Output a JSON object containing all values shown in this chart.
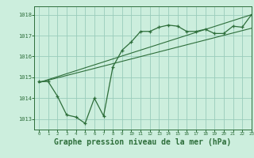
{
  "background_color": "#cceedd",
  "grid_color": "#99ccbb",
  "line_color": "#2d6e3a",
  "xlabel": "Graphe pression niveau de la mer (hPa)",
  "xlabel_fontsize": 7.0,
  "xlim": [
    -0.5,
    23
  ],
  "ylim": [
    1012.5,
    1018.4
  ],
  "yticks": [
    1013,
    1014,
    1015,
    1016,
    1017,
    1018
  ],
  "xticks": [
    0,
    1,
    2,
    3,
    4,
    5,
    6,
    7,
    8,
    9,
    10,
    11,
    12,
    13,
    14,
    15,
    16,
    17,
    18,
    19,
    20,
    21,
    22,
    23
  ],
  "line1_x": [
    0,
    1,
    2,
    3,
    4,
    5,
    6,
    7,
    8,
    9,
    10,
    11,
    12,
    13,
    14,
    15,
    16,
    17,
    18,
    19,
    20,
    21,
    22,
    23
  ],
  "line1_y": [
    1014.8,
    1014.8,
    1014.1,
    1013.2,
    1013.1,
    1012.8,
    1014.0,
    1013.15,
    1015.5,
    1016.3,
    1016.7,
    1017.2,
    1017.2,
    1017.4,
    1017.5,
    1017.45,
    1017.2,
    1017.2,
    1017.3,
    1017.1,
    1017.1,
    1017.45,
    1017.4,
    1018.0
  ],
  "line2_x": [
    0,
    23
  ],
  "line2_y": [
    1014.75,
    1018.0
  ],
  "line3_x": [
    0,
    23
  ],
  "line3_y": [
    1014.75,
    1017.35
  ]
}
